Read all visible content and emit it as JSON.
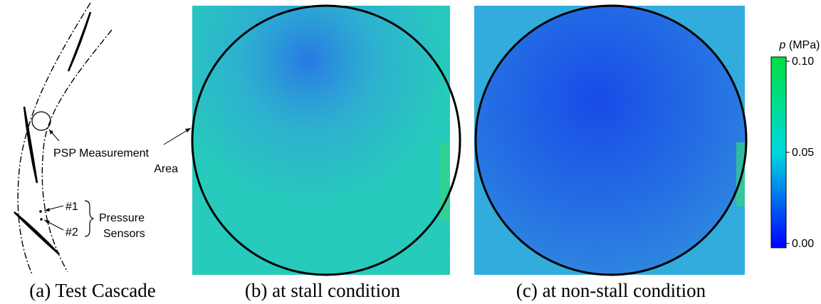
{
  "panels": [
    {
      "caption": "(a) Test Cascade"
    },
    {
      "caption": "(b) at stall condition"
    },
    {
      "caption": "(c) at non-stall condition"
    }
  ],
  "annotations": {
    "measurement_area": [
      "PSP Measurement",
      "Area"
    ],
    "sensor_1": "#1",
    "sensor_2": "#2",
    "pressure_sensors": [
      "Pressure",
      "Sensors"
    ]
  },
  "colorbar": {
    "symbol": "p",
    "unit": "(MPa)",
    "lim": [
      0,
      0.1
    ],
    "ticks": [
      {
        "value": 0,
        "label": "0.00"
      },
      0.05,
      0.1
    ]
  }
}
